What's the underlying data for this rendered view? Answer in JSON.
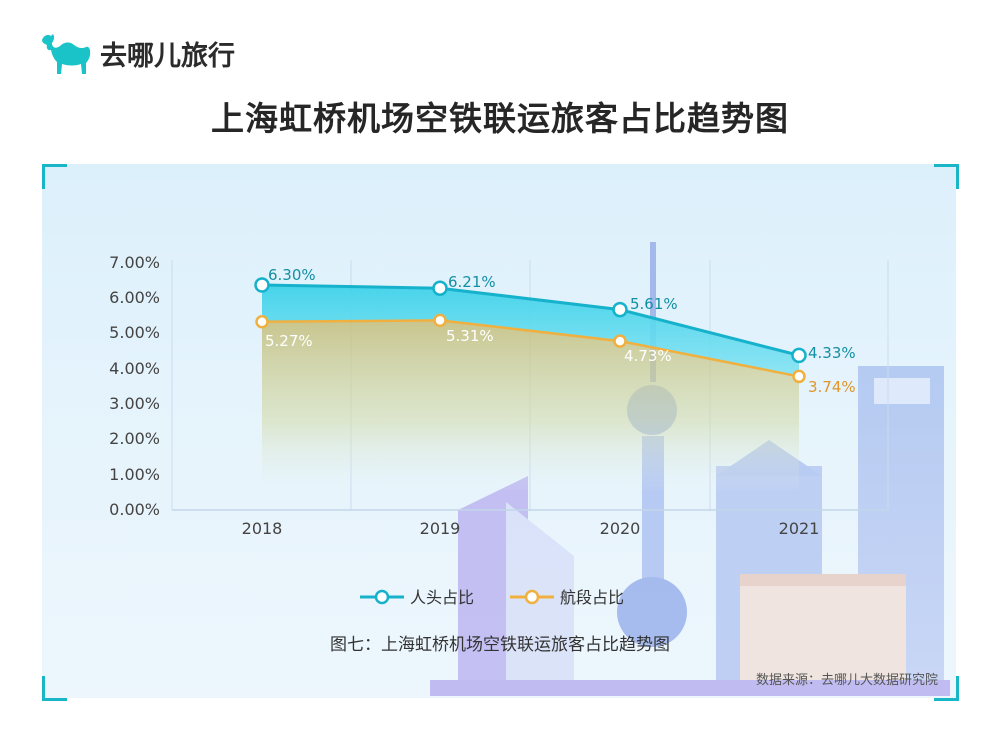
{
  "brand": {
    "name": "去哪儿旅行",
    "logo_icon": "camel-icon",
    "color": "#19c3c8"
  },
  "title": "上海虹桥机场空铁联运旅客占比趋势图",
  "caption": "图七：上海虹桥机场空铁联运旅客占比趋势图",
  "source": "数据来源：去哪儿大数据研究院",
  "chart_data": {
    "type": "line",
    "categories": [
      "2018",
      "2019",
      "2020",
      "2021"
    ],
    "series": [
      {
        "name": "人头占比",
        "values": [
          6.3,
          6.21,
          5.61,
          4.33
        ],
        "labels": [
          "6.30%",
          "6.21%",
          "5.61%",
          "4.33%"
        ],
        "color": "#16b2cc",
        "fill": "area"
      },
      {
        "name": "航段占比",
        "values": [
          5.27,
          5.31,
          4.73,
          3.74
        ],
        "labels": [
          "5.27%",
          "5.31%",
          "4.73%",
          "3.74%"
        ],
        "color": "#f0b040",
        "fill": "area"
      }
    ],
    "yticks": [
      "0.00%",
      "1.00%",
      "2.00%",
      "3.00%",
      "4.00%",
      "5.00%",
      "6.00%",
      "7.00%"
    ],
    "ylim": [
      0,
      7
    ],
    "grid": "vertical",
    "legend_position": "bottom"
  }
}
